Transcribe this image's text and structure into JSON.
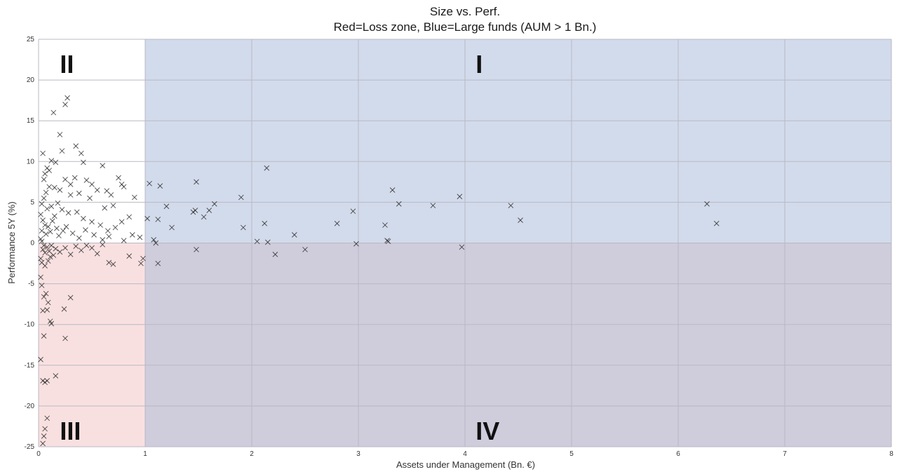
{
  "chart_data": {
    "type": "scatter",
    "title": "Size vs. Perf.",
    "subtitle": "Red=Loss zone, Blue=Large funds (AUM > 1 Bn.)",
    "xlabel": "Assets under Management (Bn. €)",
    "ylabel": "Performance 5Y (%)",
    "xlim": [
      0,
      8
    ],
    "ylim": [
      -25,
      25
    ],
    "xticks": [
      "0",
      "1",
      "2",
      "3",
      "4",
      "5",
      "6",
      "7",
      "8"
    ],
    "yticks": [
      "25",
      "20",
      "15",
      "10",
      "5",
      "0",
      "-5",
      "-10",
      "-15",
      "-20",
      "-25"
    ],
    "grid": true,
    "marker": "x",
    "regions": [
      {
        "name": "Loss zone",
        "color": "#f4c2c2",
        "x": [
          0,
          8
        ],
        "y": [
          -25,
          0
        ]
      },
      {
        "name": "Large funds",
        "color": "#a6b7d8",
        "x": [
          1,
          8
        ],
        "y": [
          -25,
          25
        ]
      }
    ],
    "quadrant_labels": [
      {
        "text": "II",
        "x": 0.2,
        "y": 22
      },
      {
        "text": "I",
        "x": 4.1,
        "y": 22
      },
      {
        "text": "III",
        "x": 0.2,
        "y": -23
      },
      {
        "text": "IV",
        "x": 4.1,
        "y": -23
      }
    ],
    "points": [
      [
        0.04,
        11.0
      ],
      [
        0.06,
        8.5
      ],
      [
        0.08,
        9.2
      ],
      [
        0.05,
        7.8
      ],
      [
        0.1,
        8.9
      ],
      [
        0.12,
        10.1
      ],
      [
        0.16,
        9.9
      ],
      [
        0.14,
        16.0
      ],
      [
        0.2,
        13.3
      ],
      [
        0.25,
        17.0
      ],
      [
        0.27,
        17.8
      ],
      [
        0.22,
        11.3
      ],
      [
        0.35,
        11.9
      ],
      [
        0.4,
        11.0
      ],
      [
        0.42,
        9.9
      ],
      [
        0.25,
        7.8
      ],
      [
        0.3,
        7.2
      ],
      [
        0.34,
        8.0
      ],
      [
        0.45,
        7.7
      ],
      [
        0.5,
        7.2
      ],
      [
        0.6,
        9.5
      ],
      [
        0.55,
        6.5
      ],
      [
        0.64,
        6.4
      ],
      [
        0.68,
        5.9
      ],
      [
        0.75,
        8.0
      ],
      [
        0.78,
        7.2
      ],
      [
        0.8,
        6.9
      ],
      [
        0.9,
        5.6
      ],
      [
        0.7,
        4.6
      ],
      [
        0.62,
        4.3
      ],
      [
        0.48,
        5.5
      ],
      [
        0.38,
        6.1
      ],
      [
        0.3,
        5.9
      ],
      [
        0.2,
        6.5
      ],
      [
        0.15,
        6.8
      ],
      [
        0.1,
        6.9
      ],
      [
        0.07,
        6.2
      ],
      [
        0.05,
        5.5
      ],
      [
        0.03,
        4.8
      ],
      [
        0.08,
        4.2
      ],
      [
        0.12,
        4.5
      ],
      [
        0.18,
        4.9
      ],
      [
        0.22,
        4.1
      ],
      [
        0.28,
        3.7
      ],
      [
        0.36,
        3.8
      ],
      [
        0.42,
        3.0
      ],
      [
        0.5,
        2.6
      ],
      [
        0.58,
        2.2
      ],
      [
        0.65,
        1.5
      ],
      [
        0.72,
        1.9
      ],
      [
        0.78,
        2.6
      ],
      [
        0.85,
        3.2
      ],
      [
        0.88,
        1.0
      ],
      [
        0.95,
        0.7
      ],
      [
        0.02,
        3.5
      ],
      [
        0.04,
        2.8
      ],
      [
        0.06,
        2.2
      ],
      [
        0.03,
        1.5
      ],
      [
        0.07,
        1.1
      ],
      [
        0.09,
        2.0
      ],
      [
        0.11,
        1.4
      ],
      [
        0.13,
        2.7
      ],
      [
        0.15,
        3.3
      ],
      [
        0.17,
        1.8
      ],
      [
        0.19,
        0.9
      ],
      [
        0.23,
        1.5
      ],
      [
        0.26,
        2.0
      ],
      [
        0.32,
        1.2
      ],
      [
        0.38,
        0.6
      ],
      [
        0.44,
        1.6
      ],
      [
        0.52,
        1.0
      ],
      [
        0.6,
        0.4
      ],
      [
        0.66,
        0.8
      ],
      [
        0.8,
        0.3
      ],
      [
        0.02,
        0.5
      ],
      [
        0.03,
        0.2
      ],
      [
        0.05,
        -0.3
      ],
      [
        0.04,
        -0.8
      ],
      [
        0.06,
        -1.2
      ],
      [
        0.08,
        -0.5
      ],
      [
        0.1,
        -1.0
      ],
      [
        0.12,
        -0.3
      ],
      [
        0.14,
        -1.5
      ],
      [
        0.02,
        -1.9
      ],
      [
        0.03,
        -2.4
      ],
      [
        0.06,
        -2.8
      ],
      [
        0.09,
        -2.2
      ],
      [
        0.11,
        -1.7
      ],
      [
        0.16,
        -0.7
      ],
      [
        0.2,
        -1.1
      ],
      [
        0.25,
        -0.6
      ],
      [
        0.3,
        -1.4
      ],
      [
        0.35,
        -0.4
      ],
      [
        0.4,
        -0.9
      ],
      [
        0.45,
        -0.3
      ],
      [
        0.5,
        -0.6
      ],
      [
        0.55,
        -1.3
      ],
      [
        0.6,
        -0.2
      ],
      [
        0.66,
        -2.4
      ],
      [
        0.7,
        -2.6
      ],
      [
        0.85,
        -1.6
      ],
      [
        0.96,
        -2.5
      ],
      [
        0.98,
        -1.9
      ],
      [
        0.02,
        -4.2
      ],
      [
        0.03,
        -5.2
      ],
      [
        0.05,
        -6.6
      ],
      [
        0.07,
        -6.2
      ],
      [
        0.04,
        -8.3
      ],
      [
        0.08,
        -8.2
      ],
      [
        0.09,
        -7.3
      ],
      [
        0.11,
        -9.6
      ],
      [
        0.12,
        -9.9
      ],
      [
        0.24,
        -8.1
      ],
      [
        0.3,
        -6.7
      ],
      [
        0.25,
        -11.7
      ],
      [
        0.05,
        -11.4
      ],
      [
        0.02,
        -14.3
      ],
      [
        0.16,
        -16.3
      ],
      [
        0.04,
        -16.9
      ],
      [
        0.06,
        -17.1
      ],
      [
        0.08,
        -16.9
      ],
      [
        0.08,
        -21.5
      ],
      [
        0.06,
        -22.8
      ],
      [
        0.05,
        -23.7
      ],
      [
        0.04,
        -24.6
      ],
      [
        1.02,
        3.0
      ],
      [
        1.04,
        7.3
      ],
      [
        1.08,
        0.4
      ],
      [
        1.1,
        0.0
      ],
      [
        1.12,
        -2.5
      ],
      [
        1.14,
        7.0
      ],
      [
        1.2,
        4.5
      ],
      [
        1.25,
        1.9
      ],
      [
        1.12,
        2.9
      ],
      [
        1.45,
        3.8
      ],
      [
        1.48,
        7.5
      ],
      [
        1.47,
        4.0
      ],
      [
        1.48,
        -0.8
      ],
      [
        1.55,
        3.2
      ],
      [
        1.6,
        4.0
      ],
      [
        1.65,
        4.8
      ],
      [
        1.9,
        5.6
      ],
      [
        1.92,
        1.9
      ],
      [
        2.05,
        0.2
      ],
      [
        2.12,
        2.4
      ],
      [
        2.14,
        9.2
      ],
      [
        2.15,
        0.1
      ],
      [
        2.22,
        -1.4
      ],
      [
        2.4,
        1.0
      ],
      [
        2.5,
        -0.8
      ],
      [
        2.8,
        2.4
      ],
      [
        2.95,
        3.9
      ],
      [
        2.98,
        -0.1
      ],
      [
        3.25,
        2.2
      ],
      [
        3.27,
        0.3
      ],
      [
        3.28,
        0.2
      ],
      [
        3.32,
        6.5
      ],
      [
        3.38,
        4.8
      ],
      [
        3.7,
        4.6
      ],
      [
        3.95,
        5.7
      ],
      [
        3.97,
        -0.5
      ],
      [
        4.43,
        4.6
      ],
      [
        4.52,
        2.8
      ],
      [
        6.27,
        4.8
      ],
      [
        6.36,
        2.4
      ]
    ]
  }
}
